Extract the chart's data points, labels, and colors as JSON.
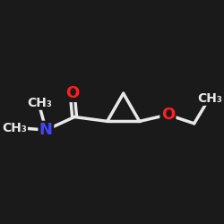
{
  "bg_color": "#1a1a1a",
  "bond_color": "#e8e8e8",
  "atom_colors": {
    "O": "#ff2020",
    "N": "#4444ff",
    "C": "#e8e8e8"
  },
  "bond_width": 2.5,
  "font_size_atoms": 13,
  "font_size_methyl": 10,
  "xlim": [
    0,
    10
  ],
  "ylim": [
    0,
    10
  ]
}
